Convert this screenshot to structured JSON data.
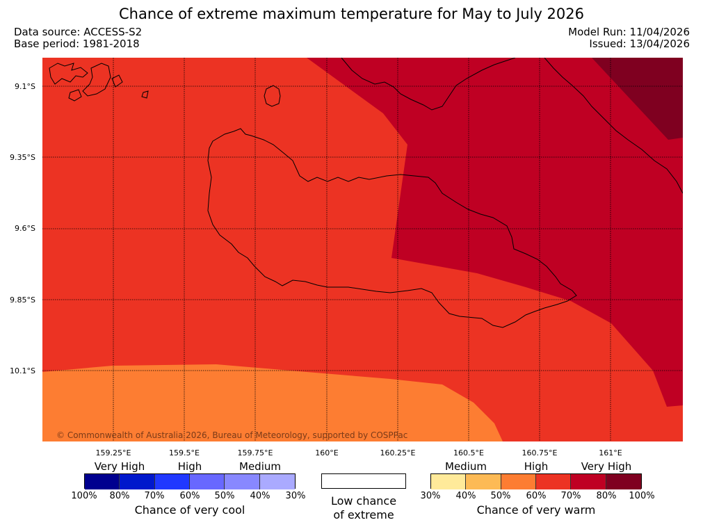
{
  "title": "Chance of extreme maximum temperature for May to July 2026",
  "meta": {
    "data_source": "Data source: ACCESS-S2",
    "base_period": "Base period: 1981-2018",
    "model_run": "Model Run: 11/04/2026",
    "issued": "Issued: 13/04/2026"
  },
  "map": {
    "lat_labels": [
      "9.1°S",
      "9.35°S",
      "9.6°S",
      "9.85°S",
      "10.1°S"
    ],
    "lon_labels": [
      "159.25°E",
      "159.5°E",
      "159.75°E",
      "160°E",
      "160.25°E",
      "160.5°E",
      "160.75°E",
      "161°E"
    ],
    "copyright": "© Commonwealth of Australia 2026, Bureau of Meteorology, supported by COSPPac",
    "zone_colors": {
      "high": "#ec3323",
      "very_high_80": "#bf0023",
      "very_high_100": "#7f0020",
      "medium": "#fd7d32"
    }
  },
  "legend": {
    "cool": {
      "categories": [
        "Very High",
        "High",
        "Medium"
      ],
      "percents": [
        "100%",
        "80%",
        "70%",
        "60%",
        "50%",
        "40%",
        "30%"
      ],
      "colors": [
        "#00008f",
        "#0018cc",
        "#2038ff",
        "#6868ff",
        "#8888ff",
        "#aaaaff"
      ],
      "caption": "Chance of very cool"
    },
    "neutral": {
      "caption_line1": "Low chance",
      "caption_line2": "of extreme"
    },
    "warm": {
      "categories": [
        "Medium",
        "High",
        "Very High"
      ],
      "percents": [
        "30%",
        "40%",
        "50%",
        "60%",
        "70%",
        "80%",
        "100%"
      ],
      "colors": [
        "#ffea9a",
        "#fdba55",
        "#fd7d32",
        "#ec3323",
        "#bf0023",
        "#7f0020"
      ],
      "caption": "Chance of very warm"
    }
  }
}
